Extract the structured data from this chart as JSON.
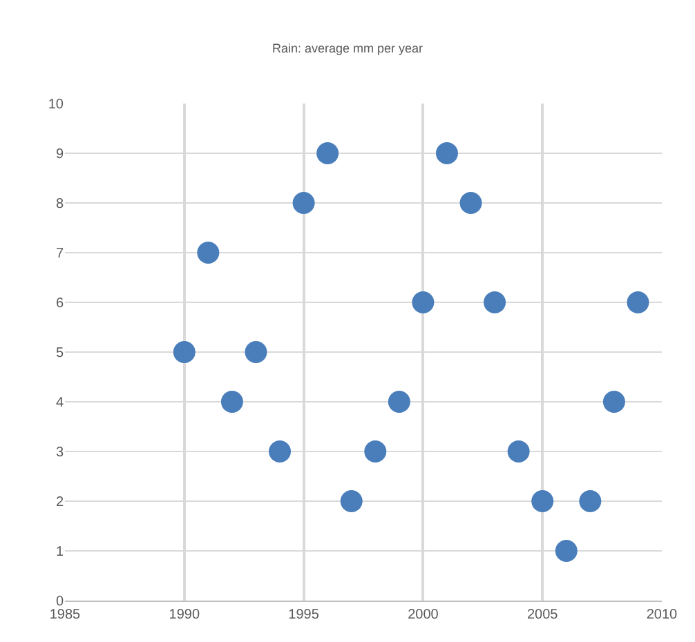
{
  "chart_data": {
    "type": "scatter",
    "title": "Rain: average mm per year",
    "x": [
      1990,
      1991,
      1992,
      1993,
      1994,
      1995,
      1996,
      1997,
      1998,
      1999,
      2000,
      2001,
      2002,
      2003,
      2004,
      2005,
      2006,
      2007,
      2008,
      2009
    ],
    "series": [
      {
        "color": "#4a7ebb",
        "values": [
          5,
          7,
          4,
          5,
          3,
          8,
          9,
          2,
          3,
          4,
          6,
          9,
          8,
          6,
          3,
          2,
          1,
          2,
          4,
          6
        ]
      }
    ],
    "xlim": [
      1985,
      2010
    ],
    "xticks": [
      1985,
      1990,
      1995,
      2000,
      2005,
      2010
    ],
    "ylim": [
      0,
      10
    ],
    "yticks": [
      0,
      1,
      2,
      3,
      4,
      5,
      6,
      7,
      8,
      9,
      10
    ],
    "grid": true,
    "marker": "circle"
  }
}
